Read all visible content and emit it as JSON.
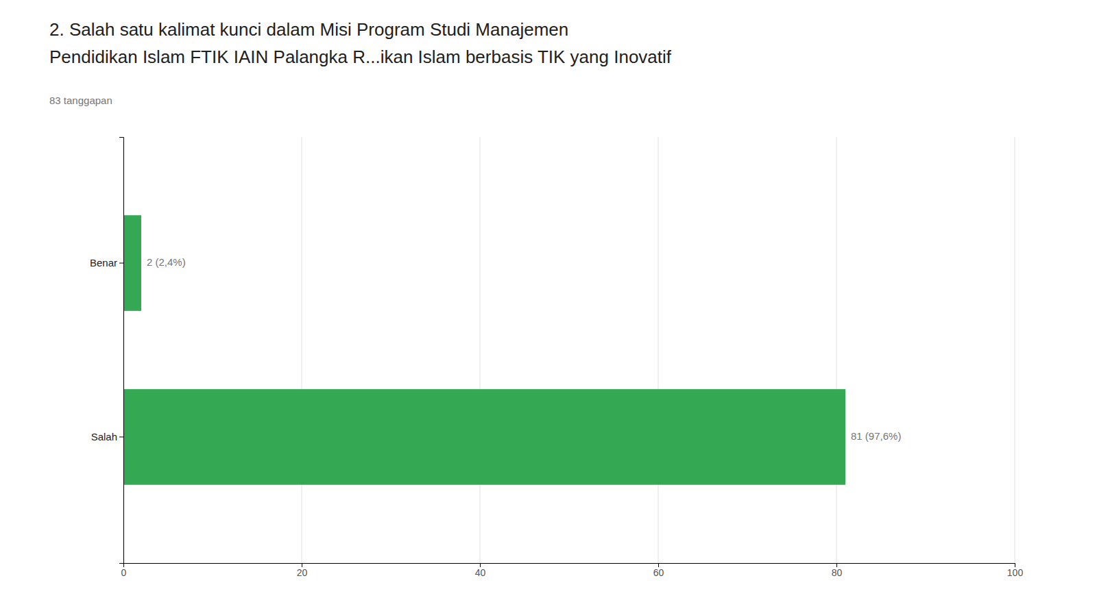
{
  "chart_data": {
    "type": "bar",
    "orientation": "horizontal",
    "title": [
      "2. Salah satu kalimat kunci dalam Misi Program Studi Manajemen",
      "Pendidikan Islam FTIK IAIN Palangka R...ikan Islam berbasis TIK yang Inovatif"
    ],
    "subtitle": "83 tanggapan",
    "categories": [
      "Salah",
      "Benar"
    ],
    "values": [
      81,
      2
    ],
    "value_labels": [
      "81 (97,6%)",
      "2 (2,4%)"
    ],
    "data_labels": true,
    "color": "#34a853",
    "xlim": [
      0,
      100
    ],
    "xticks": [
      0,
      20,
      40,
      60,
      80,
      100
    ],
    "grid": true
  }
}
